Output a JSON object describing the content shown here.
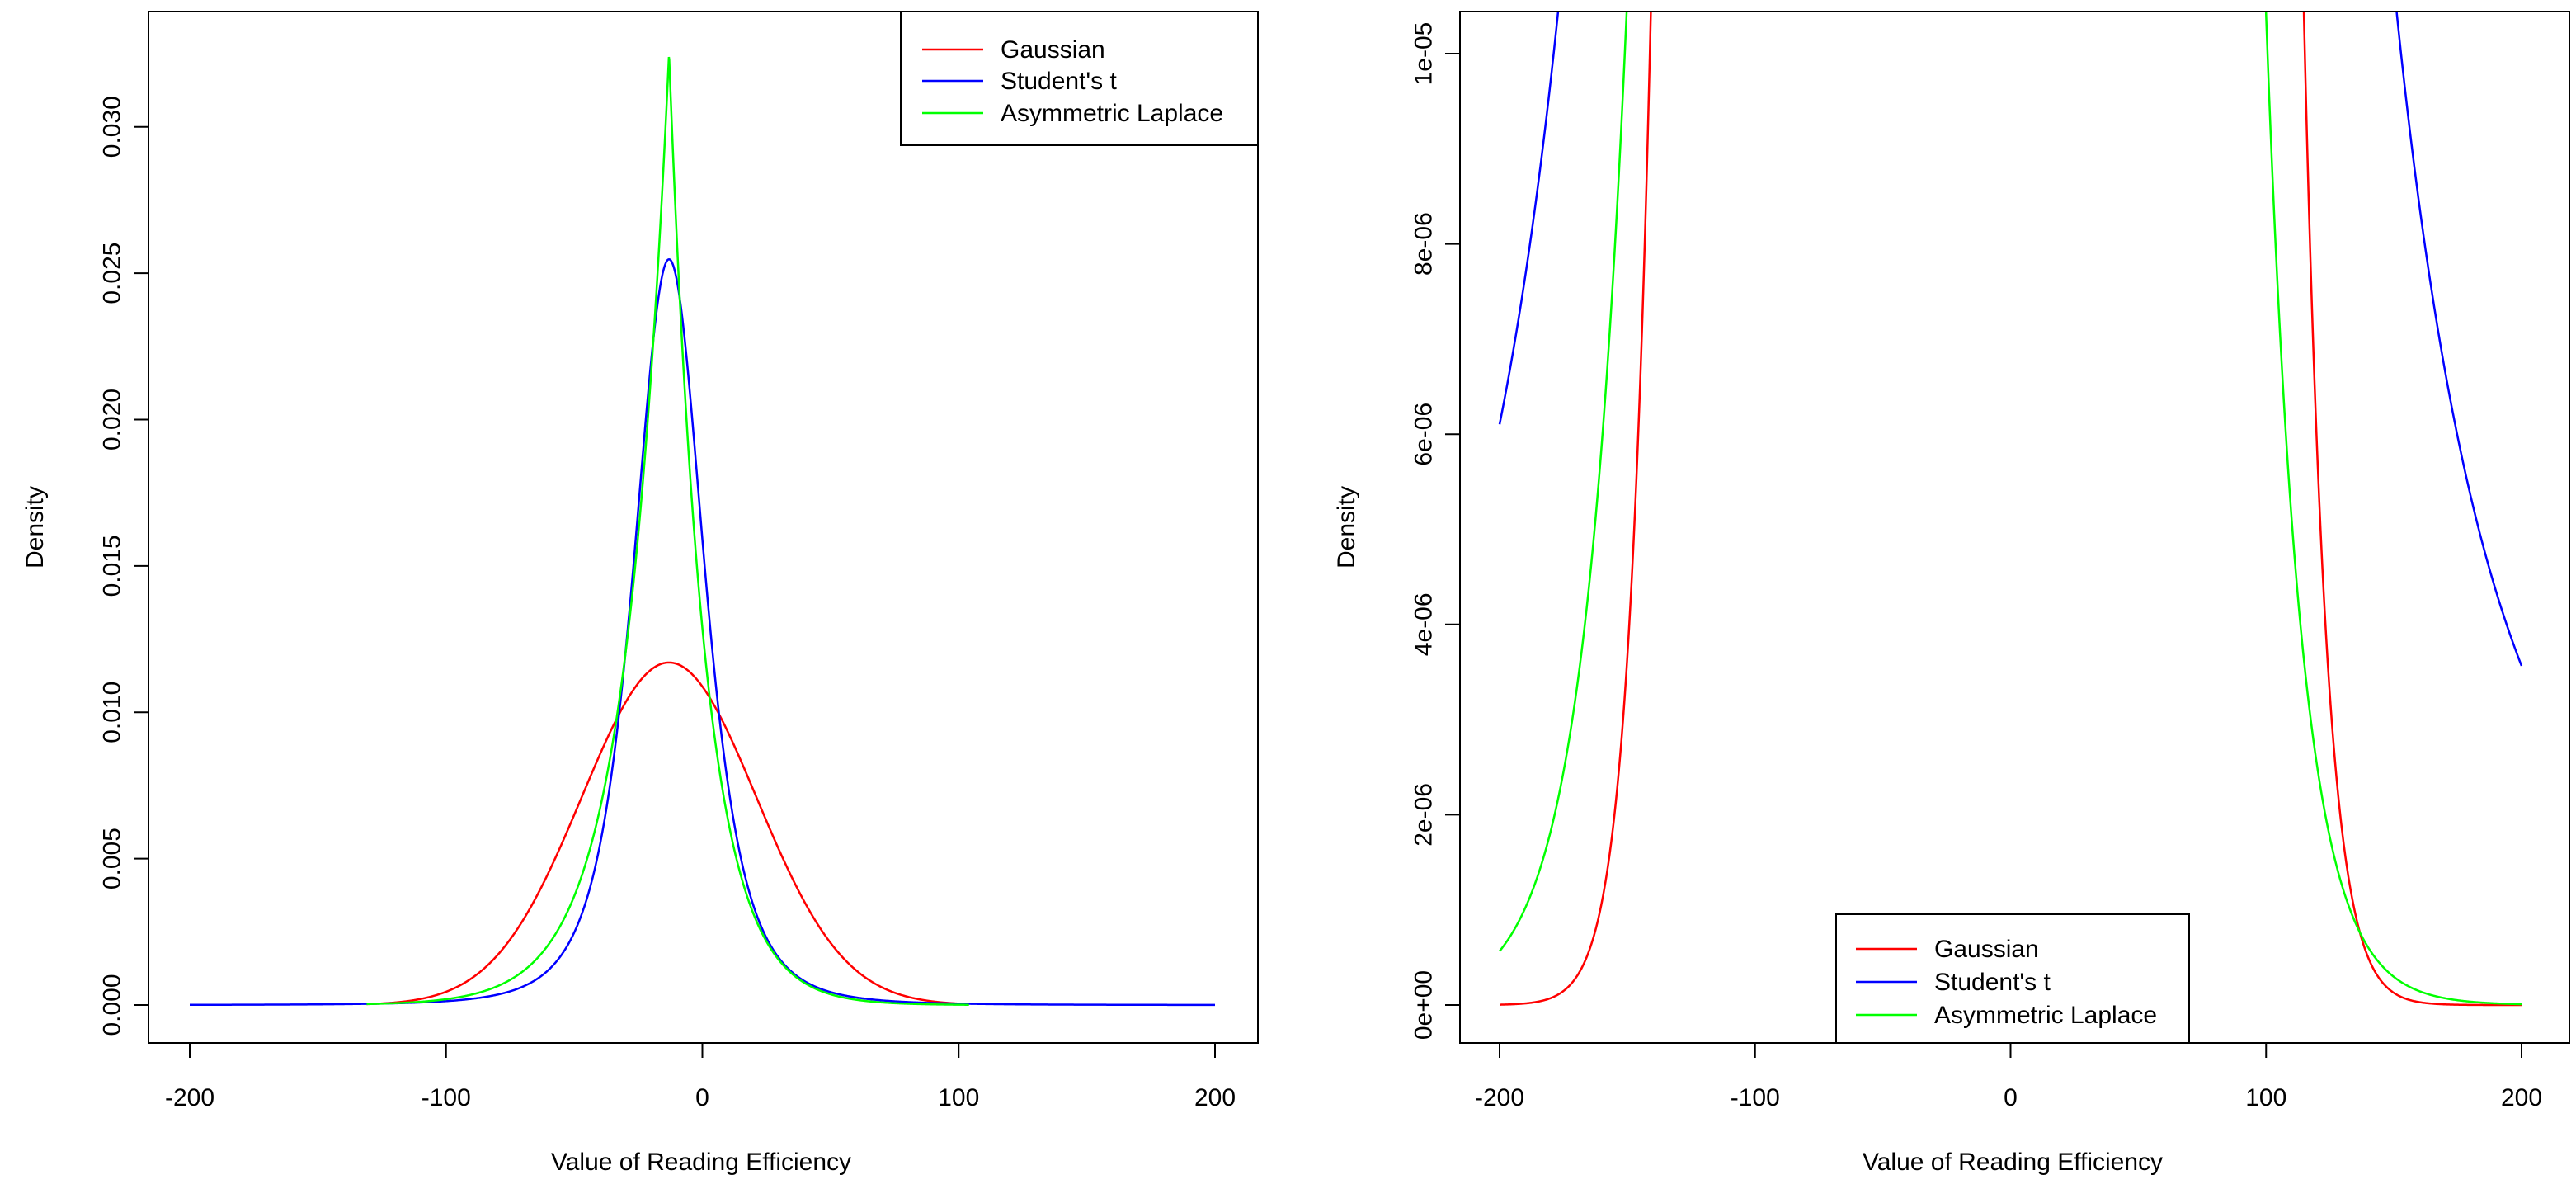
{
  "chart_data": [
    {
      "type": "line",
      "title": "",
      "xlabel": "Value of Reading Efficiency",
      "ylabel": "Density",
      "xlim": [
        -200,
        200
      ],
      "ylim": [
        0,
        0.0325
      ],
      "xticks": [
        -200,
        -100,
        0,
        100,
        200
      ],
      "yticks": [
        0.0,
        0.005,
        0.01,
        0.015,
        0.02,
        0.025,
        0.03
      ],
      "ytick_labels": [
        "0.000",
        "0.005",
        "0.010",
        "0.015",
        "0.020",
        "0.025",
        "0.030"
      ],
      "legend": {
        "position": "top-right",
        "entries": [
          {
            "name": "Gaussian",
            "color": "#ff0000"
          },
          {
            "name": "Student's t",
            "color": "#0000ff"
          },
          {
            "name": "Asymmetric Laplace",
            "color": "#00ff00"
          }
        ]
      },
      "series": [
        {
          "name": "Gaussian",
          "color": "#ff0000",
          "dist": "normal",
          "mu": -13,
          "sigma": 34.1,
          "x_range": [
            -131,
            104
          ]
        },
        {
          "name": "Student's t",
          "color": "#0000ff",
          "dist": "t",
          "mu": -13,
          "scale": 14.5,
          "df": 3.2,
          "x_range": [
            -200,
            200
          ]
        },
        {
          "name": "Asymmetric Laplace",
          "color": "#00ff00",
          "dist": "asymmetric_laplace",
          "mu": -13,
          "peak": 0.0325,
          "rate_left": 0.0586,
          "rate_right": 0.0712,
          "x_range": [
            -131,
            104
          ]
        }
      ]
    },
    {
      "type": "line",
      "title": "",
      "xlabel": "Value of Reading Efficiency",
      "ylabel": "Density",
      "xlim": [
        -200,
        200
      ],
      "ylim": [
        0,
        1e-05
      ],
      "xticks": [
        -200,
        -100,
        0,
        100,
        200
      ],
      "yticks": [
        0,
        2e-06,
        4e-06,
        6e-06,
        8e-06,
        1e-05
      ],
      "ytick_labels": [
        "0e+00",
        "2e-06",
        "4e-06",
        "6e-06",
        "8e-06",
        "1e-05"
      ],
      "legend": {
        "position": "bottom-center",
        "entries": [
          {
            "name": "Gaussian",
            "color": "#ff0000"
          },
          {
            "name": "Student's t",
            "color": "#0000ff"
          },
          {
            "name": "Asymmetric Laplace",
            "color": "#00ff00"
          }
        ]
      },
      "series": [
        {
          "name": "Gaussian",
          "color": "#ff0000",
          "dist": "normal",
          "mu": -13,
          "sigma": 34.1,
          "x_range": [
            -200,
            200
          ]
        },
        {
          "name": "Student's t",
          "color": "#0000ff",
          "dist": "t",
          "mu": -13,
          "scale": 14.5,
          "df": 3.2,
          "x_range": [
            -200,
            200
          ]
        },
        {
          "name": "Asymmetric Laplace",
          "color": "#00ff00",
          "dist": "asymmetric_laplace",
          "mu": -13,
          "peak": 0.0325,
          "rate_left": 0.0586,
          "rate_right": 0.0712,
          "x_range": [
            -200,
            200
          ]
        }
      ]
    }
  ]
}
